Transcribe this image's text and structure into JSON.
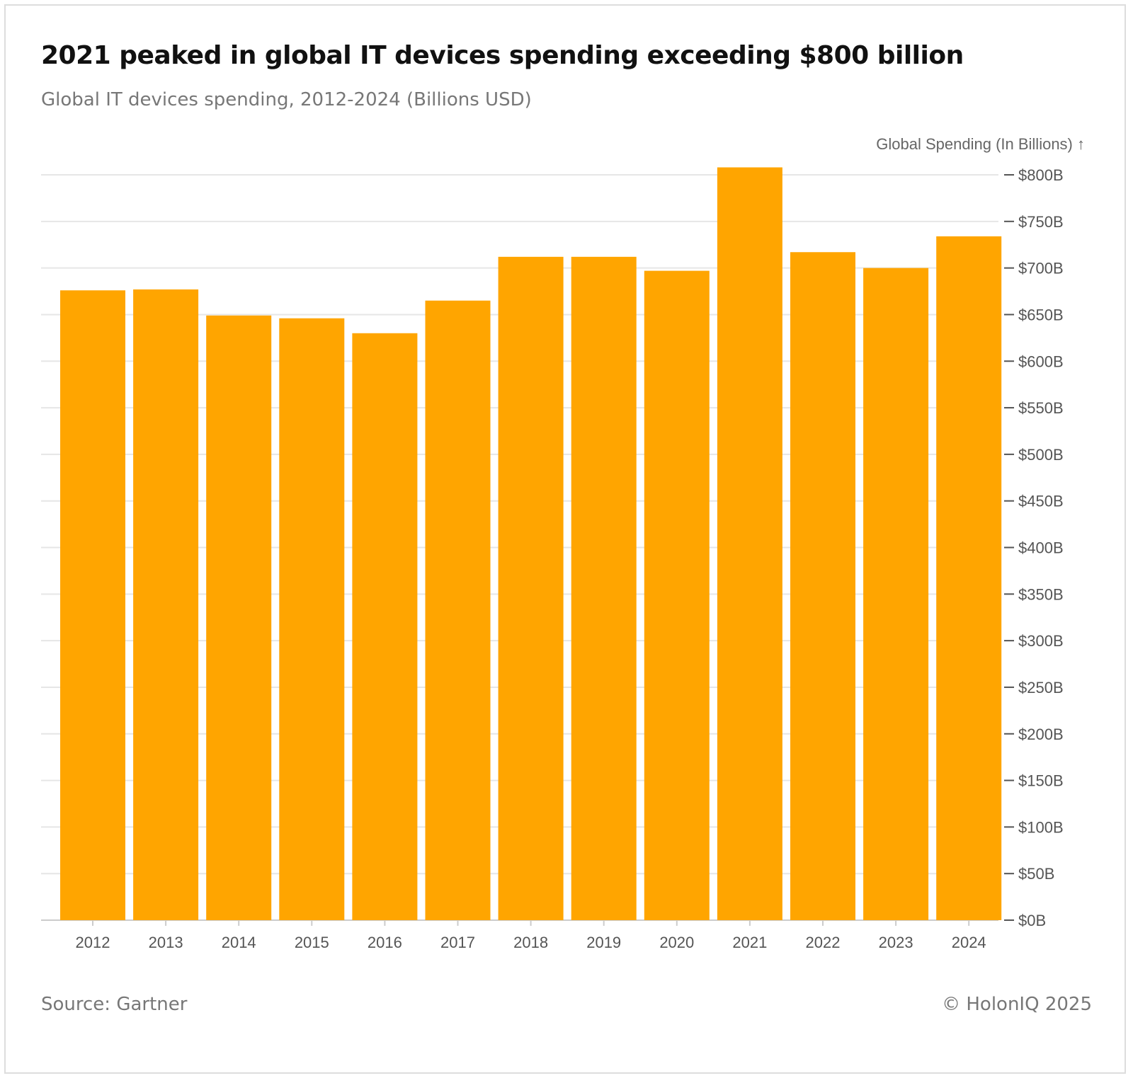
{
  "header": {
    "title": "2021 peaked in global IT devices spending exceeding $800 billion",
    "subtitle": "Global IT devices spending, 2012-2024 (Billions USD)"
  },
  "footer": {
    "source": "Source: Gartner",
    "copyright": "© HolonIQ 2025"
  },
  "colors": {
    "bar": "#FFA500",
    "grid": "#e6e6e6",
    "axis": "#555555"
  },
  "chart_data": {
    "type": "bar",
    "title": "2021 peaked in global IT devices spending exceeding $800 billion",
    "subtitle": "Global IT devices spending, 2012-2024 (Billions USD)",
    "xlabel": "",
    "ylabel": "Global Spending (In Billions) ↑",
    "y_axis_side": "right",
    "grid": true,
    "ylim": [
      0,
      800
    ],
    "yticks": [
      0,
      50,
      100,
      150,
      200,
      250,
      300,
      350,
      400,
      450,
      500,
      550,
      600,
      650,
      700,
      750,
      800
    ],
    "ytick_labels": [
      "$0B",
      "$50B",
      "$100B",
      "$150B",
      "$200B",
      "$250B",
      "$300B",
      "$350B",
      "$400B",
      "$450B",
      "$500B",
      "$550B",
      "$600B",
      "$650B",
      "$700B",
      "$750B",
      "$800B"
    ],
    "categories": [
      "2012",
      "2013",
      "2014",
      "2015",
      "2016",
      "2017",
      "2018",
      "2019",
      "2020",
      "2021",
      "2022",
      "2023",
      "2024"
    ],
    "values": [
      676,
      677,
      649,
      646,
      630,
      665,
      712,
      712,
      697,
      808,
      717,
      700,
      734
    ]
  }
}
